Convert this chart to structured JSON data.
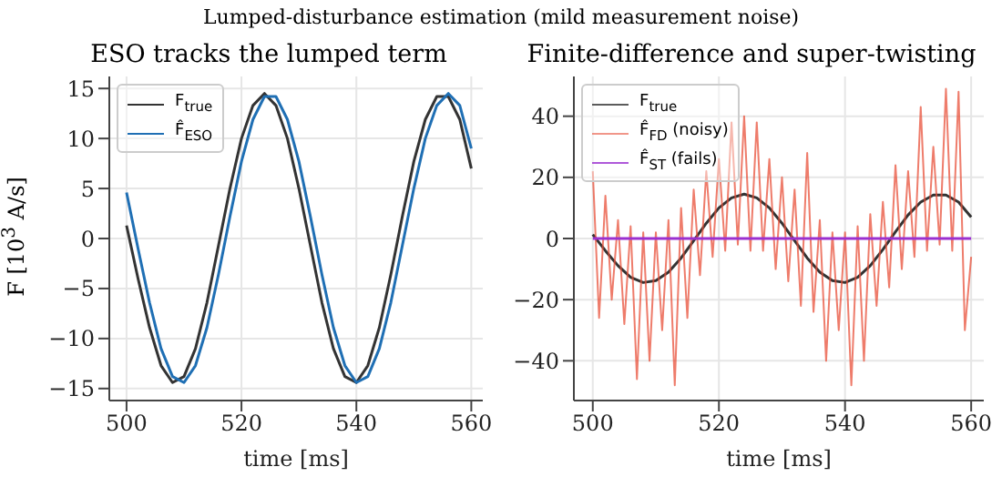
{
  "chart_data": [
    {
      "type": "line",
      "title": "ESO tracks the lumped term",
      "annotations": [
        "Lumped-disturbance estimation (mild measurement noise)"
      ],
      "xlabel": "time [ms]",
      "ylabel": "F [10$^{3}$ A/s]",
      "xlim": [
        497,
        562
      ],
      "xticks": [
        500,
        520,
        540,
        560
      ],
      "ylim": [
        -16.2,
        16.2
      ],
      "yticks": [
        -15,
        -10,
        -5,
        0,
        5,
        10,
        15
      ],
      "grid": true,
      "legend": "top left",
      "marker": "none",
      "line_style": "solid",
      "series": [
        {
          "name": "F$_{true}$",
          "color": "#333333",
          "x": [
            500,
            502,
            504,
            506,
            508,
            510,
            512,
            514,
            516,
            518,
            520,
            522,
            524,
            526,
            528,
            530,
            532,
            534,
            536,
            538,
            540,
            542,
            544,
            546,
            548,
            550,
            552,
            554,
            556,
            558,
            560
          ],
          "values": [
            1.3,
            -4,
            -8.9,
            -12.7,
            -14.4,
            -13.8,
            -11,
            -6.4,
            -0.7,
            5,
            10,
            13.3,
            14.5,
            13.3,
            10,
            5,
            -0.7,
            -6.4,
            -11,
            -13.8,
            -14.4,
            -12.7,
            -8.9,
            -3.6,
            2.2,
            7.7,
            11.9,
            14.2,
            14.2,
            11.9,
            7
          ]
        },
        {
          "name": "F̂$_{ESO}$",
          "color": "#1f6fb4",
          "x": [
            500,
            502,
            504,
            506,
            508,
            510,
            512,
            514,
            516,
            518,
            520,
            522,
            524,
            526,
            528,
            530,
            532,
            534,
            536,
            538,
            540,
            542,
            544,
            546,
            548,
            550,
            552,
            554,
            556,
            558,
            560
          ],
          "values": [
            4.6,
            -1,
            -6.4,
            -11,
            -13.8,
            -14.4,
            -12.7,
            -8.9,
            -3.6,
            2.2,
            7.7,
            11.9,
            14.2,
            14.2,
            11.9,
            7.7,
            2.2,
            -3.6,
            -8.9,
            -12.7,
            -14.4,
            -13.8,
            -11,
            -6.4,
            -0.7,
            5,
            10,
            13.3,
            14.5,
            13.3,
            9
          ]
        }
      ]
    },
    {
      "type": "line",
      "title": "Finite-difference and super-twisting",
      "xlabel": "time [ms]",
      "xlim": [
        497,
        562
      ],
      "xticks": [
        500,
        520,
        540,
        560
      ],
      "ylim": [
        -53,
        53
      ],
      "yticks": [
        -40,
        -20,
        0,
        20,
        40
      ],
      "grid": true,
      "legend": "top left",
      "marker": "none",
      "line_style": "solid",
      "series": [
        {
          "name": "F$_{true}$",
          "color": "#333333",
          "x": [
            500,
            502,
            504,
            506,
            508,
            510,
            512,
            514,
            516,
            518,
            520,
            522,
            524,
            526,
            528,
            530,
            532,
            534,
            536,
            538,
            540,
            542,
            544,
            546,
            548,
            550,
            552,
            554,
            556,
            558,
            560
          ],
          "values": [
            1.3,
            -4,
            -8.9,
            -12.7,
            -14.4,
            -13.8,
            -11,
            -6.4,
            -0.7,
            5,
            10,
            13.3,
            14.5,
            13.3,
            10,
            5,
            -0.7,
            -6.4,
            -11,
            -13.8,
            -14.4,
            -12.7,
            -8.9,
            -3.6,
            2.2,
            7.7,
            11.9,
            14.2,
            14.2,
            11.9,
            7
          ]
        },
        {
          "name": "F̂$_{FD}$ (noisy)",
          "color": "#e8503a",
          "x": [
            500,
            501,
            502,
            503,
            504,
            505,
            506,
            507,
            508,
            509,
            510,
            511,
            512,
            513,
            514,
            515,
            516,
            517,
            518,
            519,
            520,
            521,
            522,
            523,
            524,
            525,
            526,
            527,
            528,
            529,
            530,
            531,
            532,
            533,
            534,
            535,
            536,
            537,
            538,
            539,
            540,
            541,
            542,
            543,
            544,
            545,
            546,
            547,
            548,
            549,
            550,
            551,
            552,
            553,
            554,
            555,
            556,
            557,
            558,
            559,
            560
          ],
          "values": [
            22,
            -26,
            14,
            -20,
            6,
            -28,
            4,
            -46,
            2,
            -40,
            2,
            -30,
            6,
            -48,
            10,
            -26,
            16,
            -12,
            22,
            -6,
            26,
            -4,
            38,
            -2,
            40,
            -4,
            38,
            -4,
            26,
            -10,
            20,
            -14,
            16,
            -22,
            28,
            -24,
            6,
            -40,
            2,
            -30,
            2,
            -48,
            4,
            -40,
            8,
            -22,
            12,
            -16,
            24,
            -10,
            22,
            -6,
            43,
            -4,
            30,
            -2,
            49,
            -4,
            48,
            -30,
            -6
          ]
        },
        {
          "name": "F̂$_{ST}$ (fails)",
          "color": "#9b30d0",
          "x": [
            500,
            560
          ],
          "values": [
            0,
            0
          ]
        }
      ]
    }
  ]
}
